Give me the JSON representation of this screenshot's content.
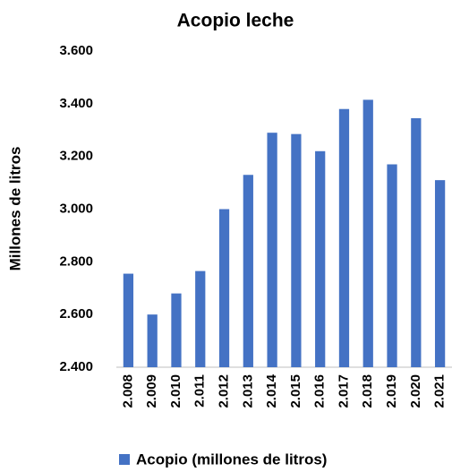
{
  "chart_data": {
    "type": "bar",
    "title": "Acopio leche",
    "y_label": "Millones de litros",
    "categories": [
      "2.008",
      "2.009",
      "2.010",
      "2.011",
      "2.012",
      "2.013",
      "2.014",
      "2.015",
      "2.016",
      "2.017",
      "2.018",
      "2.019",
      "2.020",
      "2.021"
    ],
    "series": [
      {
        "name": "Acopio (millones de litros)",
        "color": "#4472c4",
        "values": [
          2755,
          2600,
          2680,
          2765,
          3000,
          3130,
          3290,
          3285,
          3220,
          3380,
          3415,
          3170,
          3345,
          3110
        ]
      }
    ],
    "ylim": [
      2400,
      3600
    ],
    "yticks": [
      {
        "value": 2400,
        "label": "2.400"
      },
      {
        "value": 2600,
        "label": "2.600"
      },
      {
        "value": 2800,
        "label": "2.800"
      },
      {
        "value": 3000,
        "label": "3.000"
      },
      {
        "value": 3200,
        "label": "3.200"
      },
      {
        "value": 3400,
        "label": "3.400"
      },
      {
        "value": 3600,
        "label": "3.600"
      }
    ],
    "grid": false,
    "legend": "bottom"
  }
}
